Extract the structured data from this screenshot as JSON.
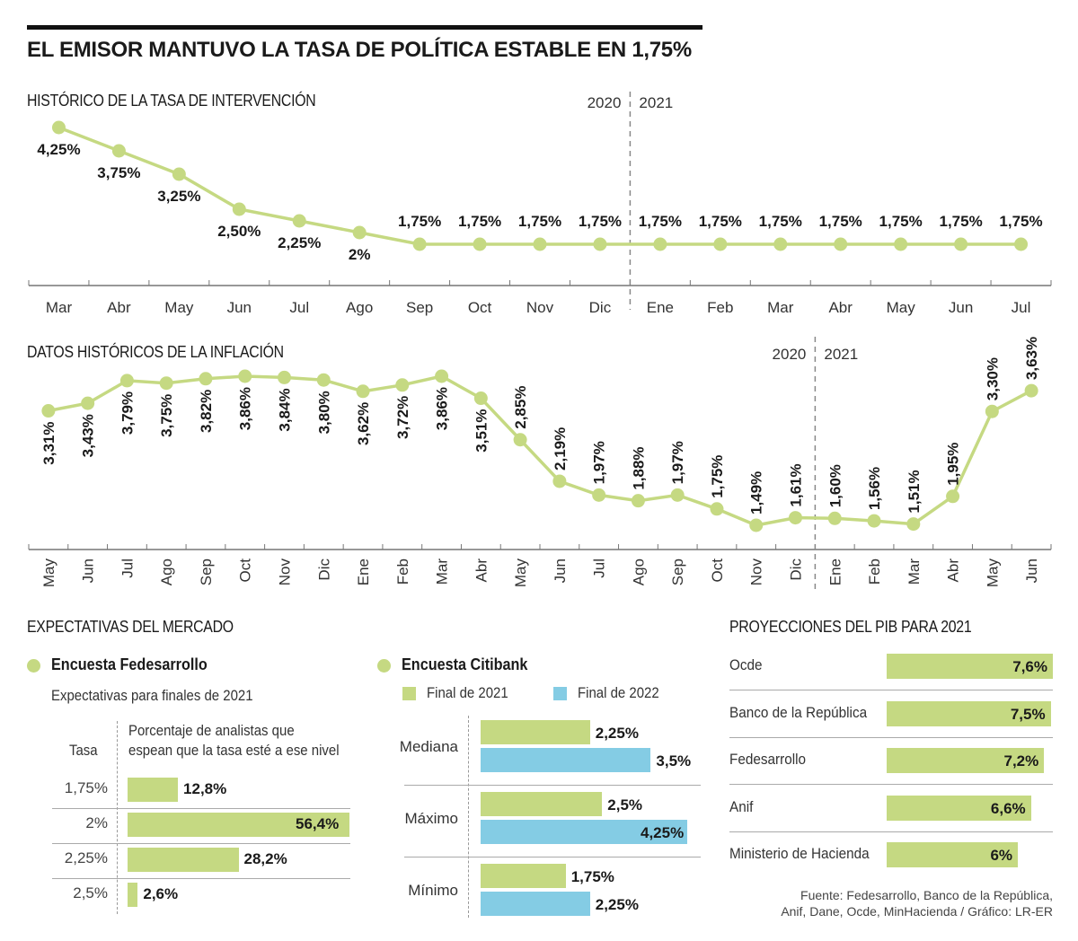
{
  "title": "EL EMISOR MANTUVO LA TASA DE POLÍTICA ESTABLE EN 1,75%",
  "chart_data": [
    {
      "type": "line",
      "title": "HISTÓRICO DE LA TASA DE INTERVENCIÓN",
      "categories": [
        "Mar",
        "Abr",
        "May",
        "Jun",
        "Jul",
        "Ago",
        "Sep",
        "Oct",
        "Nov",
        "Dic",
        "Ene",
        "Feb",
        "Mar",
        "Abr",
        "May",
        "Jun",
        "Jul"
      ],
      "values": [
        4.25,
        3.75,
        3.25,
        2.5,
        2.25,
        2.0,
        1.75,
        1.75,
        1.75,
        1.75,
        1.75,
        1.75,
        1.75,
        1.75,
        1.75,
        1.75,
        1.75
      ],
      "labels": [
        "4,25%",
        "3,75%",
        "3,25%",
        "2,50%",
        "2,25%",
        "2%",
        "1,75%",
        "1,75%",
        "1,75%",
        "1,75%",
        "1,75%",
        "1,75%",
        "1,75%",
        "1,75%",
        "1,75%",
        "1,75%",
        "1,75%"
      ],
      "year_divider": {
        "before_index": 10,
        "left": "2020",
        "right": "2021"
      },
      "ylim": [
        1.5,
        4.5
      ],
      "color": "#c5d982"
    },
    {
      "type": "line",
      "title": "DATOS HISTÓRICOS DE LA INFLACIÓN",
      "categories": [
        "May",
        "Jun",
        "Jul",
        "Ago",
        "Sep",
        "Oct",
        "Nov",
        "Dic",
        "Ene",
        "Feb",
        "Mar",
        "Abr",
        "May",
        "Jun",
        "Jul",
        "Ago",
        "Sep",
        "Oct",
        "Nov",
        "Dic",
        "Ene",
        "Feb",
        "Mar",
        "Abr",
        "May",
        "Jun"
      ],
      "values": [
        3.31,
        3.43,
        3.79,
        3.75,
        3.82,
        3.86,
        3.84,
        3.8,
        3.62,
        3.72,
        3.86,
        3.51,
        2.85,
        2.19,
        1.97,
        1.88,
        1.97,
        1.75,
        1.49,
        1.61,
        1.6,
        1.56,
        1.51,
        1.95,
        3.3,
        3.63
      ],
      "labels": [
        "3,31%",
        "3,43%",
        "3,79%",
        "3,75%",
        "3,82%",
        "3,86%",
        "3,84%",
        "3,80%",
        "3,62%",
        "3,72%",
        "3,86%",
        "3,51%",
        "2,85%",
        "2,19%",
        "1,97%",
        "1,88%",
        "1,97%",
        "1,75%",
        "1,49%",
        "1,61%",
        "1,60%",
        "1,56%",
        "1,51%",
        "1,95%",
        "3,30%",
        "3,63%"
      ],
      "year_divider": {
        "before_index": 20,
        "left": "2020",
        "right": "2021"
      },
      "ylim": [
        1.0,
        4.2
      ],
      "color": "#c5d982"
    },
    {
      "type": "bar",
      "title": "Encuesta Fedesarrollo",
      "subtitle": "Expectativas para finales de 2021",
      "row_header": "Tasa",
      "value_header": "Porcentaje de analistas que espean que la tasa esté a ese nivel",
      "categories": [
        "1,75%",
        "2%",
        "2,25%",
        "2,5%"
      ],
      "values": [
        12.8,
        56.4,
        28.2,
        2.6
      ],
      "labels": [
        "12,8%",
        "56,4%",
        "28,2%",
        "2,6%"
      ],
      "color": "#c5d982"
    },
    {
      "type": "bar",
      "title": "Encuesta Citibank",
      "categories": [
        "Mediana",
        "Máximo",
        "Mínimo"
      ],
      "series": [
        {
          "name": "Final de 2021",
          "color": "#c5d982",
          "values": [
            2.25,
            2.5,
            1.75
          ],
          "labels": [
            "2,25%",
            "2,5%",
            "1,75%"
          ]
        },
        {
          "name": "Final de 2022",
          "color": "#84cce4",
          "values": [
            3.5,
            4.25,
            2.25
          ],
          "labels": [
            "3,5%",
            "4,25%",
            "2,25%"
          ]
        }
      ]
    },
    {
      "type": "bar",
      "title": "PROYECCIONES DEL PIB PARA 2021",
      "categories": [
        "Ocde",
        "Banco de la República",
        "Fedesarrollo",
        "Anif",
        "Ministerio de Hacienda"
      ],
      "values": [
        7.6,
        7.5,
        7.2,
        6.6,
        6.0
      ],
      "labels": [
        "7,6%",
        "7,5%",
        "7,2%",
        "6,6%",
        "6%"
      ],
      "color": "#c5d982"
    }
  ],
  "market": {
    "title": "EXPECTATIVAS DEL MERCADO"
  },
  "source": {
    "line1": "Fuente: Fedesarrollo, Banco de la República,",
    "line2": "Anif, Dane, Ocde, MinHacienda / Gráfico: LR-ER"
  }
}
